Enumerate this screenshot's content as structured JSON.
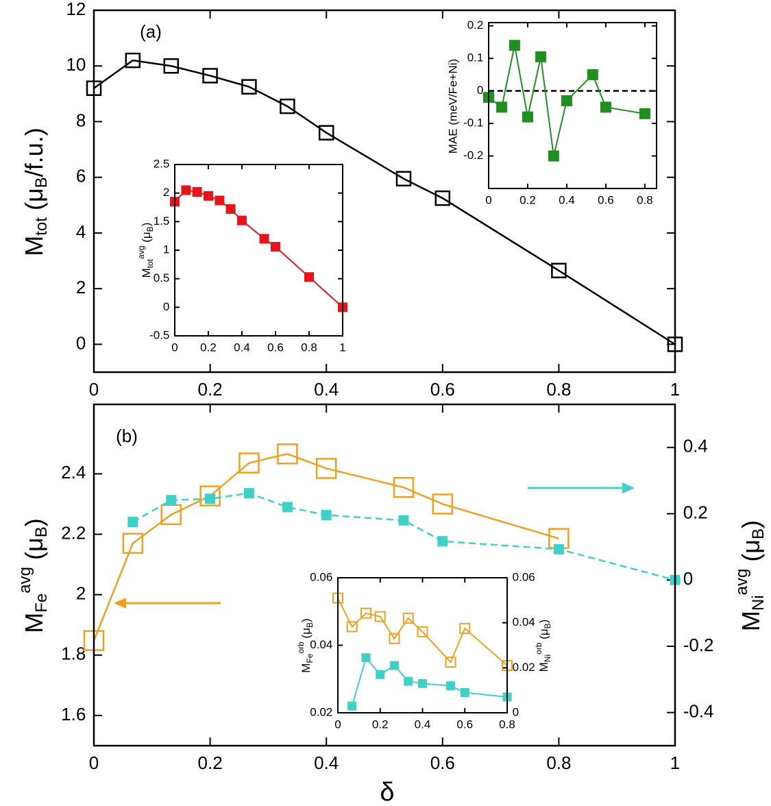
{
  "chart_data": [
    {
      "type": "line",
      "annotations": [
        "(a)"
      ],
      "ylabel": [
        "M",
        "tot",
        " (μ",
        "B",
        "/f.u.)"
      ],
      "x": [
        0,
        0.067,
        0.133,
        0.2,
        0.267,
        0.333,
        0.4,
        0.533,
        0.6,
        0.8,
        1
      ],
      "series": [
        {
          "color": "#000000",
          "marker": "open-square",
          "values": [
            9.2,
            10.2,
            10.0,
            9.65,
            9.25,
            8.55,
            7.6,
            5.95,
            5.25,
            2.65,
            0.0
          ]
        }
      ],
      "xlim": [
        0,
        1
      ],
      "xticks": [
        0,
        0.2,
        0.4,
        0.6,
        0.8,
        1
      ],
      "ylim": [
        -1,
        12
      ],
      "yticks": [
        0,
        2,
        4,
        6,
        8,
        10,
        12
      ]
    },
    {
      "type": "line",
      "ylabel": [
        "M",
        "tot",
        "avg",
        " (μ",
        "B",
        ")"
      ],
      "x": [
        0,
        0.067,
        0.133,
        0.2,
        0.267,
        0.333,
        0.4,
        0.533,
        0.6,
        0.8,
        1
      ],
      "series": [
        {
          "color": "#e8141c",
          "marker": "square",
          "values": [
            1.85,
            2.05,
            2.02,
            1.95,
            1.87,
            1.72,
            1.52,
            1.2,
            1.06,
            0.53,
            0.0
          ]
        }
      ],
      "xlim": [
        0,
        1
      ],
      "xticks": [
        0,
        0.2,
        0.4,
        0.6,
        0.8,
        1
      ],
      "ylim": [
        -0.5,
        2.5
      ],
      "yticks": [
        -0.5,
        0,
        0.5,
        1,
        1.5,
        2,
        2.5
      ]
    },
    {
      "type": "line",
      "ylabel": [
        "MAE (meV/Fe+Ni)"
      ],
      "reference_line": 0,
      "x": [
        0,
        0.067,
        0.133,
        0.2,
        0.267,
        0.333,
        0.4,
        0.533,
        0.6,
        0.8
      ],
      "series": [
        {
          "color": "#1f8f1f",
          "marker": "square",
          "values": [
            -0.02,
            -0.05,
            0.14,
            -0.08,
            0.105,
            -0.2,
            -0.03,
            0.05,
            -0.05,
            -0.07
          ]
        }
      ],
      "xlim": [
        0,
        0.86
      ],
      "xticks": [
        0,
        0.2,
        0.4,
        0.6,
        0.8
      ],
      "ylim": [
        -0.3,
        0.21
      ],
      "yticks": [
        -0.2,
        -0.1,
        0,
        0.1,
        0.2
      ]
    },
    {
      "type": "line",
      "annotations": [
        "(b)"
      ],
      "xlabel": "δ",
      "ylabel": [
        "M",
        "Fe",
        "avg",
        " (μ",
        "B",
        ")"
      ],
      "y2label": [
        "M",
        "Ni",
        "avg",
        " (μ",
        "B",
        ")"
      ],
      "x": [
        0,
        0.067,
        0.133,
        0.2,
        0.267,
        0.333,
        0.4,
        0.533,
        0.6,
        0.8,
        1
      ],
      "series": [
        {
          "color": "#f0a020",
          "marker": "open-square",
          "values": [
            1.848,
            2.17,
            2.265,
            2.327,
            2.436,
            2.466,
            2.418,
            2.355,
            2.3,
            2.186,
            null
          ]
        },
        {
          "color": "#40d0c8",
          "marker": "square",
          "dashed": true,
          "axis": "y2",
          "values": [
            null,
            0.175,
            0.241,
            0.245,
            0.262,
            0.22,
            0.196,
            0.18,
            0.117,
            0.093,
            0.0
          ]
        }
      ],
      "xlim": [
        0,
        1
      ],
      "xticks": [
        0,
        0.2,
        0.4,
        0.6,
        0.8,
        1
      ],
      "ylim": [
        1.5,
        2.63
      ],
      "yticks": [
        1.6,
        1.8,
        2,
        2.2,
        2.4
      ],
      "y2lim": [
        -0.5,
        0.53
      ],
      "y2ticks": [
        -0.4,
        -0.2,
        0,
        0.2,
        0.4
      ]
    },
    {
      "type": "line",
      "ylabel": [
        "M",
        "Fe",
        "orb",
        " (μ",
        "B",
        ")"
      ],
      "y2label": [
        "M",
        "Ni",
        "orb",
        " (μ",
        "B",
        ")"
      ],
      "x": [
        0,
        0.067,
        0.133,
        0.2,
        0.267,
        0.333,
        0.4,
        0.533,
        0.6,
        0.8
      ],
      "series": [
        {
          "color": "#f0a020",
          "marker": "open-square",
          "values": [
            0.054,
            0.0455,
            0.0495,
            0.0485,
            0.042,
            0.048,
            0.044,
            0.035,
            0.045,
            0.034
          ]
        },
        {
          "color": "#40d0c8",
          "marker": "square",
          "axis": "y2",
          "values": [
            null,
            0.003,
            0.0245,
            0.017,
            0.021,
            0.014,
            0.013,
            0.012,
            0.009,
            0.007
          ]
        }
      ],
      "xlim": [
        0,
        0.8
      ],
      "xticks": [
        0,
        0.2,
        0.4,
        0.6,
        0.8
      ],
      "ylim": [
        0.02,
        0.06
      ],
      "yticks": [
        0.02,
        0.04,
        0.06
      ],
      "y2lim": [
        0,
        0.06
      ],
      "y2ticks": [
        0,
        0.02,
        0.04,
        0.06
      ]
    }
  ]
}
